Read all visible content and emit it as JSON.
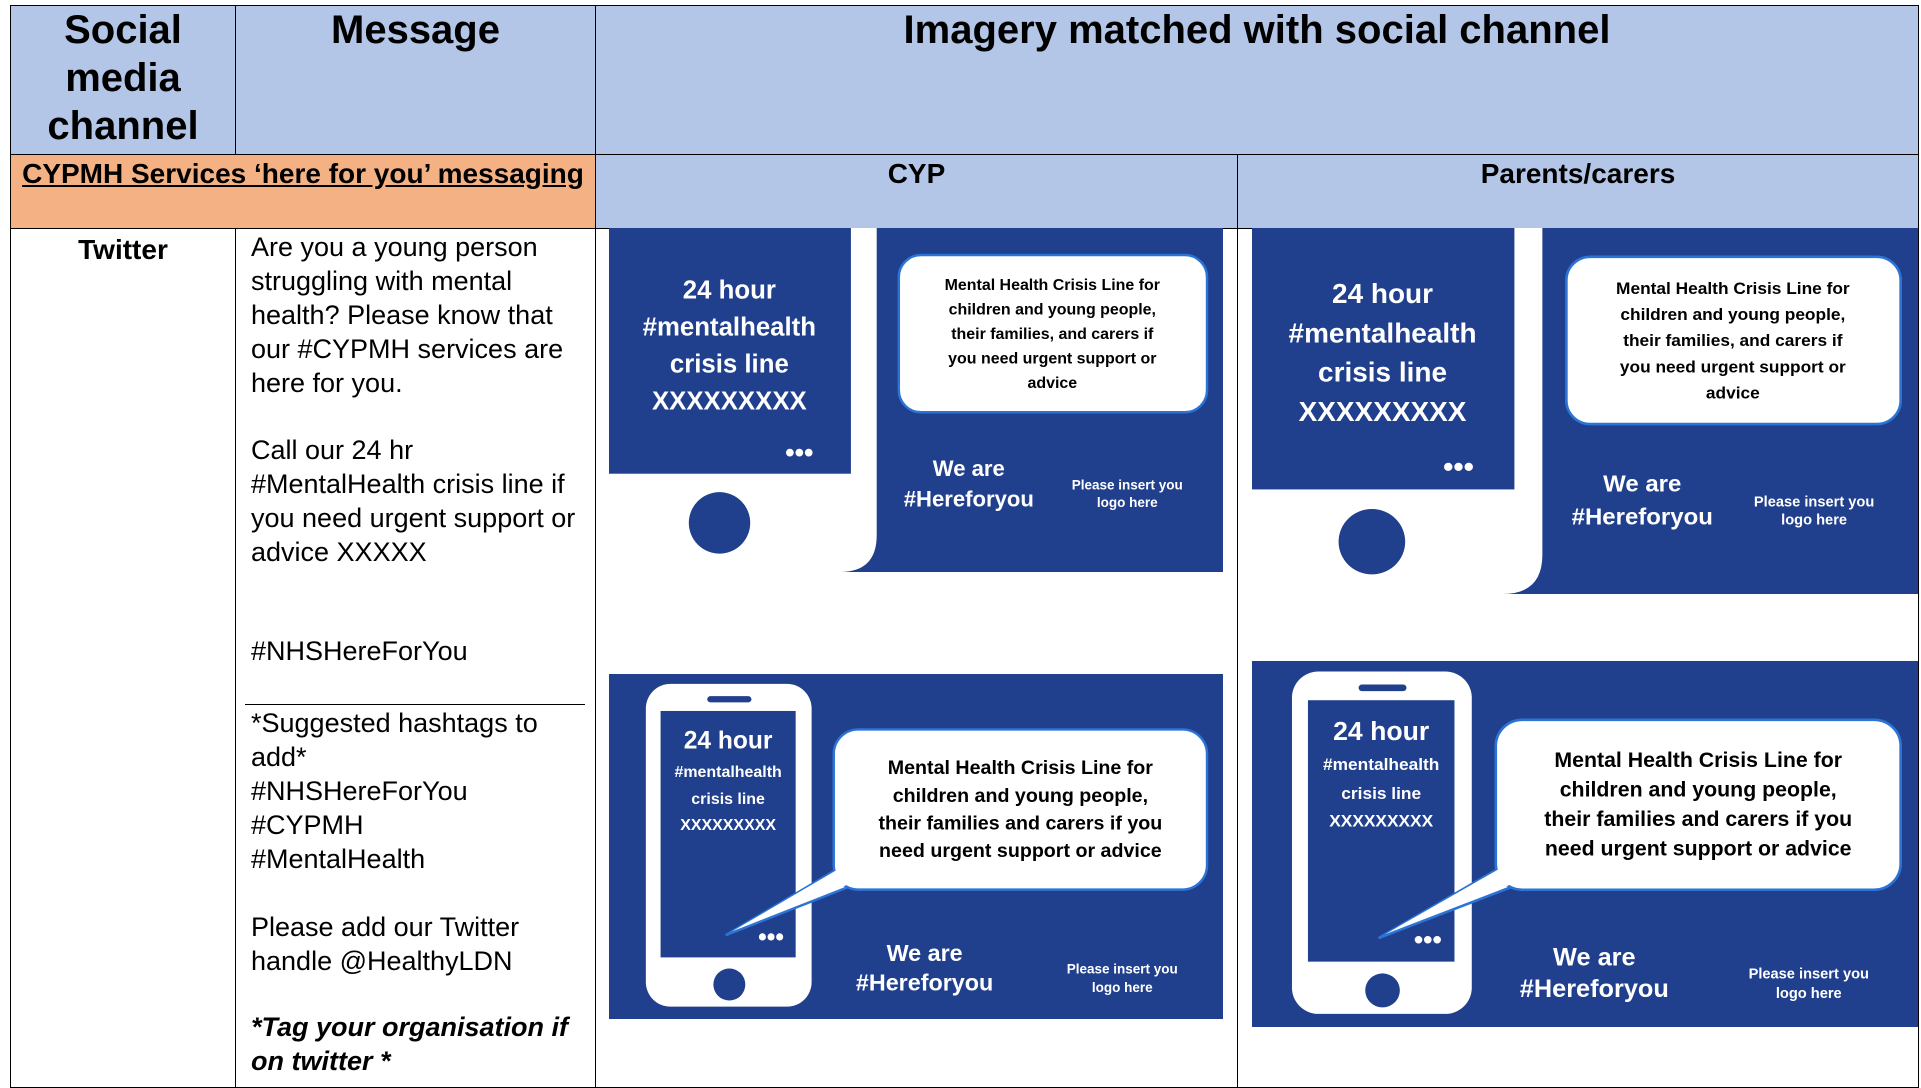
{
  "header": {
    "channel": "Social media channel",
    "message": "Message",
    "imagery": "Imagery matched with social channel"
  },
  "section": {
    "title": "CYPMH Services ‘here for you’ messaging",
    "cyp": "CYP",
    "parents": "Parents/carers"
  },
  "row": {
    "channel": "Twitter",
    "message": [
      "Are you a young person struggling with mental health? Please know that our #CYPMH services are here for you.",
      "Call our 24 hr #MentalHealth crisis line if you need urgent support or advice XXXXX",
      "#NHSHereForYou"
    ],
    "suggestions": {
      "title": "*Suggested hashtags to add*",
      "tags": [
        "#NHSHereForYou",
        "#CYPMH",
        "#MentalHealth"
      ]
    },
    "handle": "Please add our Twitter handle @HealthyLDN",
    "tag_note": "*Tag your organisation if on twitter *",
    "cyp": [
      {
        "screen": [
          "24 hour",
          "#mentalhealth",
          "crisis line",
          "XXXXXXXXX"
        ],
        "bubble": [
          "Mental Health Crisis Line for",
          "children and young people,",
          "their families, and carers if",
          "you need urgent support or",
          "advice"
        ],
        "we": "We are",
        "tag": "#Hereforyou",
        "logo": [
          "Please insert you",
          "logo here"
        ]
      },
      {
        "screen": [
          "24 hour",
          "#mentalhealth",
          "crisis line",
          "XXXXXXXXX"
        ],
        "bubble": [
          "Mental Health Crisis Line for",
          "children and young people,",
          "their families and carers if you",
          "need urgent support or advice"
        ],
        "we": "We are",
        "tag": "#Hereforyou",
        "logo": [
          "Please insert you",
          "logo here"
        ]
      }
    ],
    "parents": [
      {
        "screen": [
          "24 hour",
          "#mentalhealth",
          "crisis line",
          "XXXXXXXXX"
        ],
        "bubble": [
          "Mental Health Crisis Line for",
          "children and young people,",
          "their families, and carers if",
          "you need urgent support or",
          "advice"
        ],
        "we": "We are",
        "tag": "#Hereforyou",
        "logo": [
          "Please insert you",
          "logo here"
        ]
      },
      {
        "screen": [
          "24 hour",
          "#mentalhealth",
          "crisis line",
          "XXXXXXXXX"
        ],
        "bubble": [
          "Mental Health Crisis Line for",
          "children and young people,",
          "their families and carers if you",
          "need urgent support or advice"
        ],
        "we": "We are",
        "tag": "#Hereforyou",
        "logo": [
          "Please insert you",
          "logo here"
        ]
      }
    ]
  }
}
